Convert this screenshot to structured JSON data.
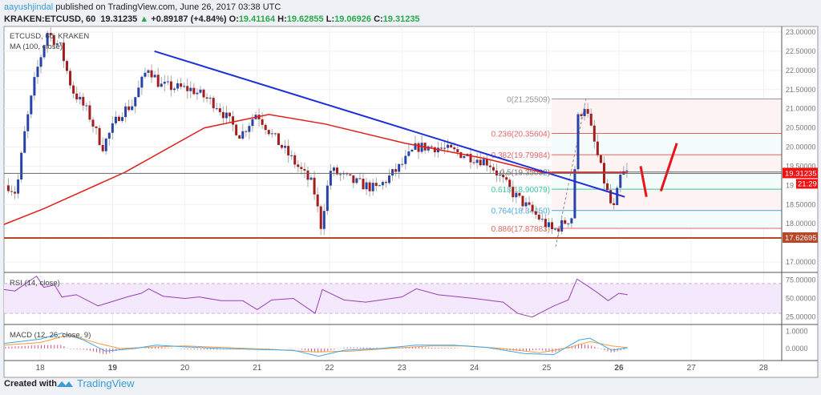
{
  "header": {
    "user": "aayushjindal",
    "published": "published on TradingView.com, June 26, 2017 03:38 UTC"
  },
  "quote": {
    "symbol": "KRAKEN:ETCUSD, 60",
    "last": "19.31235",
    "arrow": "▲",
    "change": "+0.89187 (+4.84%)",
    "o_label": "O:",
    "o": "19.41164",
    "h_label": "H:",
    "h": "19.62855",
    "l_label": "L:",
    "l": "19.06926",
    "c_label": "C:",
    "c": "19.31235"
  },
  "footer": {
    "created": "Created with",
    "brand": "TradingView"
  },
  "chart_data": {
    "type": "candlestick",
    "title": "ETCUSD, 60, KRAKEN",
    "ma_label": "MA (100, close)",
    "ylim": [
      16.85,
      23.15
    ],
    "y_ticks": [
      "23.00000",
      "22.50000",
      "22.00000",
      "21.50000",
      "21.00000",
      "20.50000",
      "20.00000",
      "19.50000",
      "19",
      "18.50000",
      "18.00000",
      "17.00000"
    ],
    "y_tick_values": [
      23,
      22.5,
      22,
      21.5,
      21,
      20.5,
      20,
      19.5,
      19,
      18.5,
      18,
      17
    ],
    "x_ticks": [
      "18",
      "19",
      "20",
      "21",
      "22",
      "23",
      "24",
      "25",
      "26",
      "27",
      "28"
    ],
    "x_tick_values": [
      18,
      19,
      20,
      21,
      22,
      23,
      24,
      25,
      26,
      27,
      28
    ],
    "xlim": [
      17.5,
      28.25
    ],
    "price_path": [
      [
        17.56,
        19.0
      ],
      [
        17.67,
        18.8
      ],
      [
        17.78,
        20.3
      ],
      [
        17.94,
        21.9
      ],
      [
        18.1,
        23.0
      ],
      [
        18.28,
        22.6
      ],
      [
        18.44,
        21.5
      ],
      [
        18.66,
        20.9
      ],
      [
        18.86,
        20.0
      ],
      [
        19.11,
        20.9
      ],
      [
        19.27,
        21.1
      ],
      [
        19.49,
        22.1
      ],
      [
        19.66,
        21.6
      ],
      [
        20.1,
        21.5
      ],
      [
        20.44,
        21.1
      ],
      [
        20.77,
        20.3
      ],
      [
        20.99,
        20.9
      ],
      [
        21.21,
        20.3
      ],
      [
        21.43,
        19.8
      ],
      [
        21.77,
        19.0
      ],
      [
        21.88,
        17.95
      ],
      [
        22.01,
        19.4
      ],
      [
        22.32,
        19.1
      ],
      [
        22.65,
        18.9
      ],
      [
        22.98,
        19.5
      ],
      [
        23.2,
        20.0
      ],
      [
        23.48,
        20.0
      ],
      [
        23.87,
        19.8
      ],
      [
        24.2,
        19.6
      ],
      [
        24.53,
        18.8
      ],
      [
        24.75,
        18.4
      ],
      [
        25.09,
        17.8
      ],
      [
        25.36,
        18.2
      ],
      [
        25.42,
        20.7
      ],
      [
        25.53,
        21.1
      ],
      [
        25.7,
        19.8
      ],
      [
        25.81,
        19.0
      ],
      [
        25.92,
        18.3
      ],
      [
        26.03,
        19.3
      ],
      [
        26.12,
        19.33
      ]
    ],
    "ma_path": [
      [
        17.5,
        17.98
      ],
      [
        18.06,
        18.4
      ],
      [
        19.17,
        19.34
      ],
      [
        20.27,
        20.5
      ],
      [
        21.16,
        20.85
      ],
      [
        21.94,
        20.6
      ],
      [
        23.04,
        20.1
      ],
      [
        24.15,
        19.7
      ],
      [
        24.93,
        19.34
      ],
      [
        26.12,
        19.34
      ]
    ],
    "trendline": [
      [
        19.58,
        22.5
      ],
      [
        26.08,
        18.7
      ]
    ],
    "support": {
      "value": 17.62695,
      "label": "17.62695"
    },
    "last_price": {
      "value": 19.31235,
      "label": "19.31235",
      "countdown": "21:29"
    },
    "fib": {
      "start_day": 25.07,
      "levels": [
        {
          "ratio": "0",
          "value": 21.25509,
          "label": "0(21.25509)",
          "color": "#999999"
        },
        {
          "ratio": "0.236",
          "value": 20.35604,
          "label": "0.236(20.35604)",
          "color": "#e06666"
        },
        {
          "ratio": "0.382",
          "value": 19.79984,
          "label": "0.382(19.79984)",
          "color": "#e06666"
        },
        {
          "ratio": "0.5",
          "value": 19.35032,
          "label": "0.5(19.35032)",
          "color": "#777777"
        },
        {
          "ratio": "0.618",
          "value": 18.90079,
          "label": "0.618(18.90079)",
          "color": "#3cc8a0"
        },
        {
          "ratio": "0.764",
          "value": 18.3445,
          "label": "0.764(18.34450)",
          "color": "#4aa8d8"
        },
        {
          "ratio": "0.886",
          "value": 17.87883,
          "label": "0.886(17.87883)",
          "color": "#e06666"
        }
      ]
    },
    "arrows": [
      [
        [
          26.3,
          19.5
        ],
        [
          26.38,
          18.7
        ]
      ],
      [
        [
          26.58,
          18.85
        ],
        [
          26.8,
          20.1
        ]
      ]
    ],
    "rsi": {
      "label": "RSI (14, close)",
      "ylim": [
        15,
        85
      ],
      "ticks": [
        "75.00000",
        "50.00000",
        "25.00000"
      ],
      "tick_values": [
        75,
        50,
        25
      ],
      "band": [
        70,
        30
      ],
      "path": [
        [
          17.5,
          62
        ],
        [
          17.65,
          60
        ],
        [
          17.8,
          70
        ],
        [
          17.95,
          80
        ],
        [
          18.05,
          65
        ],
        [
          18.2,
          68
        ],
        [
          18.3,
          52
        ],
        [
          18.5,
          55
        ],
        [
          18.8,
          40
        ],
        [
          19.0,
          46
        ],
        [
          19.2,
          52
        ],
        [
          19.4,
          57
        ],
        [
          19.5,
          63
        ],
        [
          19.7,
          53
        ],
        [
          20.0,
          50
        ],
        [
          20.2,
          52
        ],
        [
          20.5,
          47
        ],
        [
          20.8,
          47
        ],
        [
          21.0,
          35
        ],
        [
          21.2,
          48
        ],
        [
          21.5,
          50
        ],
        [
          21.8,
          30
        ],
        [
          21.9,
          62
        ],
        [
          22.2,
          48
        ],
        [
          22.5,
          45
        ],
        [
          23.0,
          52
        ],
        [
          23.2,
          63
        ],
        [
          23.5,
          55
        ],
        [
          24.0,
          50
        ],
        [
          24.4,
          45
        ],
        [
          24.6,
          30
        ],
        [
          24.8,
          25
        ],
        [
          25.1,
          40
        ],
        [
          25.3,
          48
        ],
        [
          25.42,
          76
        ],
        [
          25.55,
          68
        ],
        [
          25.7,
          58
        ],
        [
          25.85,
          47
        ],
        [
          26.0,
          57
        ],
        [
          26.12,
          55
        ]
      ]
    },
    "macd": {
      "label": "MACD (12, 26, close, 9)",
      "ylim": [
        -0.7,
        1.4
      ],
      "ticks": [
        "1.0000",
        "0.0000"
      ],
      "tick_values": [
        1,
        0
      ],
      "macd_path": [
        [
          17.5,
          0.3
        ],
        [
          18.0,
          0.55
        ],
        [
          18.3,
          0.9
        ],
        [
          18.6,
          0.5
        ],
        [
          18.9,
          -0.15
        ],
        [
          19.3,
          0.0
        ],
        [
          19.6,
          0.2
        ],
        [
          20.0,
          0.1
        ],
        [
          20.5,
          0.0
        ],
        [
          21.0,
          -0.05
        ],
        [
          21.5,
          -0.1
        ],
        [
          21.85,
          -0.45
        ],
        [
          22.2,
          -0.1
        ],
        [
          22.7,
          0.0
        ],
        [
          23.2,
          0.2
        ],
        [
          23.7,
          0.2
        ],
        [
          24.2,
          0.05
        ],
        [
          24.7,
          -0.3
        ],
        [
          25.1,
          -0.35
        ],
        [
          25.45,
          0.5
        ],
        [
          25.6,
          0.6
        ],
        [
          25.9,
          -0.1
        ],
        [
          26.12,
          0.05
        ]
      ],
      "signal_path": [
        [
          17.5,
          0.2
        ],
        [
          18.0,
          0.35
        ],
        [
          18.4,
          0.8
        ],
        [
          18.8,
          0.3
        ],
        [
          19.1,
          0.0
        ],
        [
          19.6,
          0.1
        ],
        [
          20.0,
          0.15
        ],
        [
          20.6,
          0.05
        ],
        [
          21.2,
          -0.05
        ],
        [
          21.8,
          -0.2
        ],
        [
          22.3,
          -0.15
        ],
        [
          22.8,
          0.0
        ],
        [
          23.4,
          0.15
        ],
        [
          23.9,
          0.15
        ],
        [
          24.4,
          0.0
        ],
        [
          24.9,
          -0.25
        ],
        [
          25.3,
          0.05
        ],
        [
          25.6,
          0.4
        ],
        [
          25.9,
          0.15
        ],
        [
          26.12,
          0.05
        ]
      ]
    }
  }
}
